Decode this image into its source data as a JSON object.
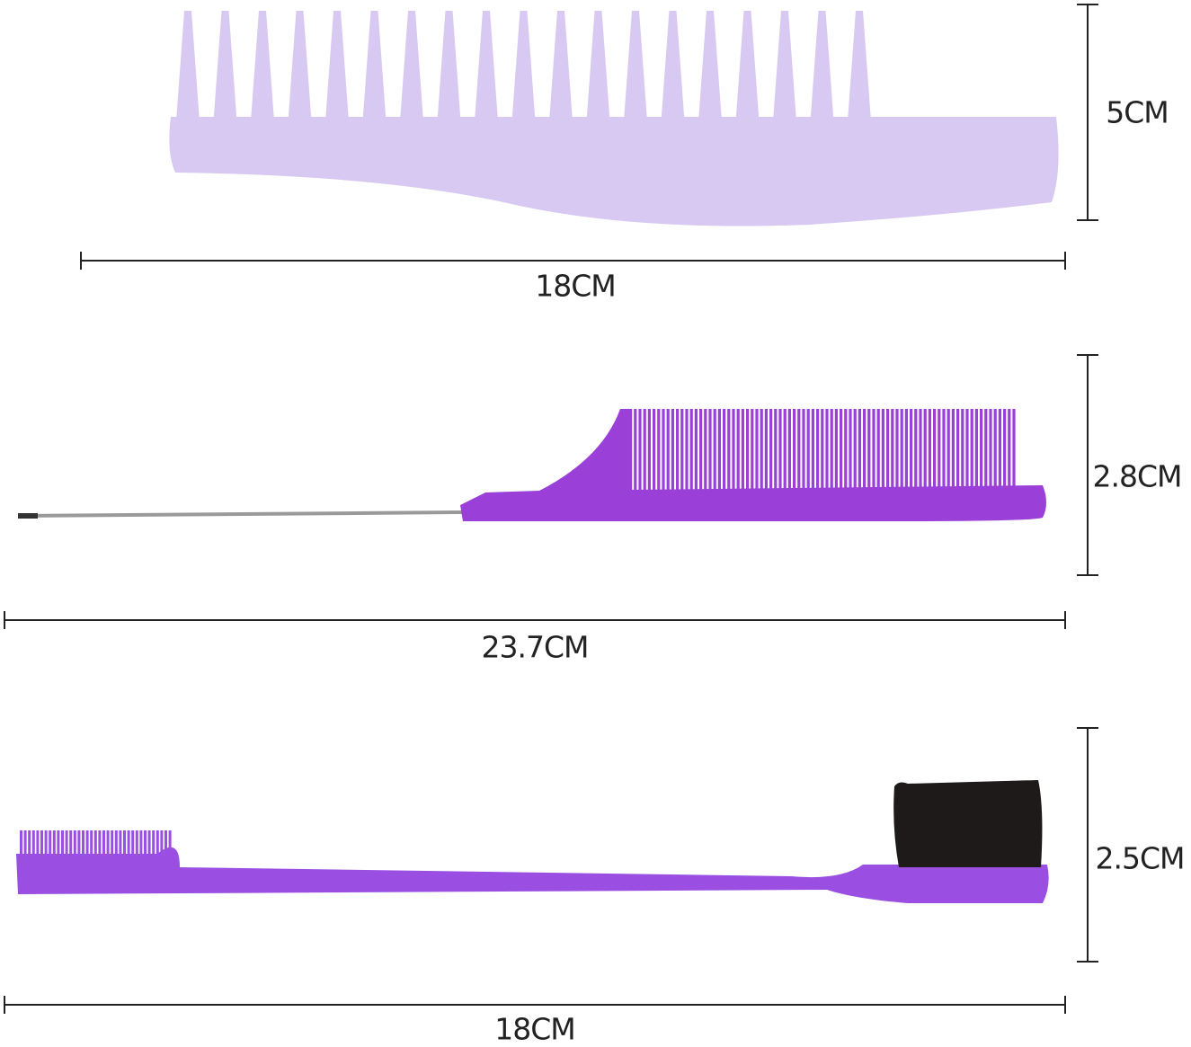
{
  "colors": {
    "wide_comb": "#d8c9f2",
    "rat_tail_comb": "#9a3fd8",
    "edge_brush": "#9b4fe2",
    "bristles": "#1e1a1a",
    "needle": "#9a9a9a",
    "lines": "#222222"
  },
  "products": [
    {
      "name": "wide-tooth-comb",
      "width_label": "18CM",
      "height_label": "5CM"
    },
    {
      "name": "rat-tail-comb",
      "width_label": "23.7CM",
      "height_label": "2.8CM"
    },
    {
      "name": "edge-brush",
      "width_label": "18CM",
      "height_label": "2.5CM"
    }
  ]
}
